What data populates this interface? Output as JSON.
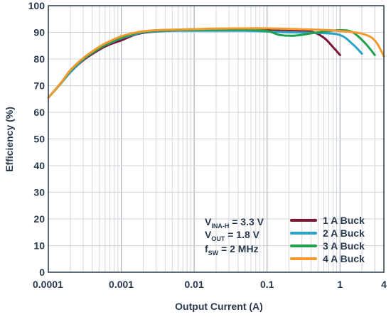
{
  "chart_data": {
    "type": "line",
    "xlabel": "Output Current (A)",
    "ylabel": "Efficiency (%)",
    "xscale": "log",
    "xlim": [
      0.0001,
      4
    ],
    "ylim": [
      0,
      100
    ],
    "x_ticks": [
      0.0001,
      0.001,
      0.01,
      0.1,
      1,
      4
    ],
    "x_tick_labels": [
      "0.0001",
      "0.001",
      "0.01",
      "0.1",
      "1",
      "4"
    ],
    "y_ticks": [
      0,
      10,
      20,
      30,
      40,
      50,
      60,
      70,
      80,
      90,
      100
    ],
    "y_tick_labels": [
      "0",
      "10",
      "20",
      "30",
      "40",
      "50",
      "60",
      "70",
      "80",
      "90",
      "100"
    ],
    "grid": true,
    "legend_position": "bottom-right",
    "annotations": {
      "vin": {
        "main": "V",
        "sub": "INA-H",
        "value": " = 3.3 V"
      },
      "vout": {
        "main": "V",
        "sub": "OUT",
        "value": " = 1.8 V"
      },
      "fsw": {
        "main": "f",
        "sub": "SW",
        "value": " = 2 MHz"
      }
    },
    "series": [
      {
        "name": "1 A Buck",
        "color": "#7a1733",
        "x": [
          0.0001,
          0.00015,
          0.0002,
          0.0003,
          0.0005,
          0.0007,
          0.001,
          0.0015,
          0.002,
          0.003,
          0.005,
          0.01,
          0.02,
          0.05,
          0.1,
          0.2,
          0.4,
          0.6,
          0.8,
          1.0
        ],
        "y": [
          65.5,
          71,
          75,
          79.5,
          83.5,
          85.5,
          87,
          89,
          89.8,
          90.3,
          90.6,
          90.8,
          90.9,
          91,
          91,
          90.8,
          90.3,
          88,
          84.5,
          81.5
        ]
      },
      {
        "name": "2 A Buck",
        "color": "#2ba3c9",
        "x": [
          0.0001,
          0.00015,
          0.0002,
          0.0003,
          0.0005,
          0.0007,
          0.001,
          0.0015,
          0.002,
          0.003,
          0.005,
          0.01,
          0.02,
          0.05,
          0.1,
          0.2,
          0.5,
          1.0,
          1.5,
          2.0
        ],
        "y": [
          65.5,
          71,
          75,
          79.8,
          84,
          86,
          87.8,
          89.2,
          90,
          90.4,
          90.6,
          90.6,
          90.6,
          90.6,
          90.3,
          90,
          89.8,
          89,
          85.5,
          82
        ]
      },
      {
        "name": "3 A Buck",
        "color": "#1fa04c",
        "x": [
          0.0001,
          0.00015,
          0.0002,
          0.0003,
          0.0005,
          0.0007,
          0.001,
          0.0015,
          0.002,
          0.003,
          0.005,
          0.01,
          0.02,
          0.05,
          0.1,
          0.15,
          0.25,
          0.5,
          1.0,
          1.5,
          2.2,
          3.0
        ],
        "y": [
          65.5,
          71,
          75.5,
          80,
          84,
          86.2,
          88,
          89.5,
          90.2,
          90.6,
          90.8,
          90.9,
          91,
          91,
          90.5,
          89,
          88.8,
          90,
          90.8,
          90,
          86,
          81.5
        ]
      },
      {
        "name": "4 A Buck",
        "color": "#f39a2e",
        "x": [
          0.0001,
          0.00015,
          0.0002,
          0.0003,
          0.0005,
          0.0007,
          0.001,
          0.0015,
          0.002,
          0.003,
          0.005,
          0.01,
          0.02,
          0.05,
          0.1,
          0.2,
          0.5,
          1.0,
          2.0,
          3.0,
          4.0
        ],
        "y": [
          65.5,
          71.2,
          75.8,
          80.3,
          84.6,
          86.7,
          88.5,
          89.8,
          90.4,
          90.8,
          91,
          91.2,
          91.4,
          91.5,
          91.5,
          91.3,
          91,
          90.5,
          89.5,
          87,
          81
        ]
      }
    ]
  }
}
